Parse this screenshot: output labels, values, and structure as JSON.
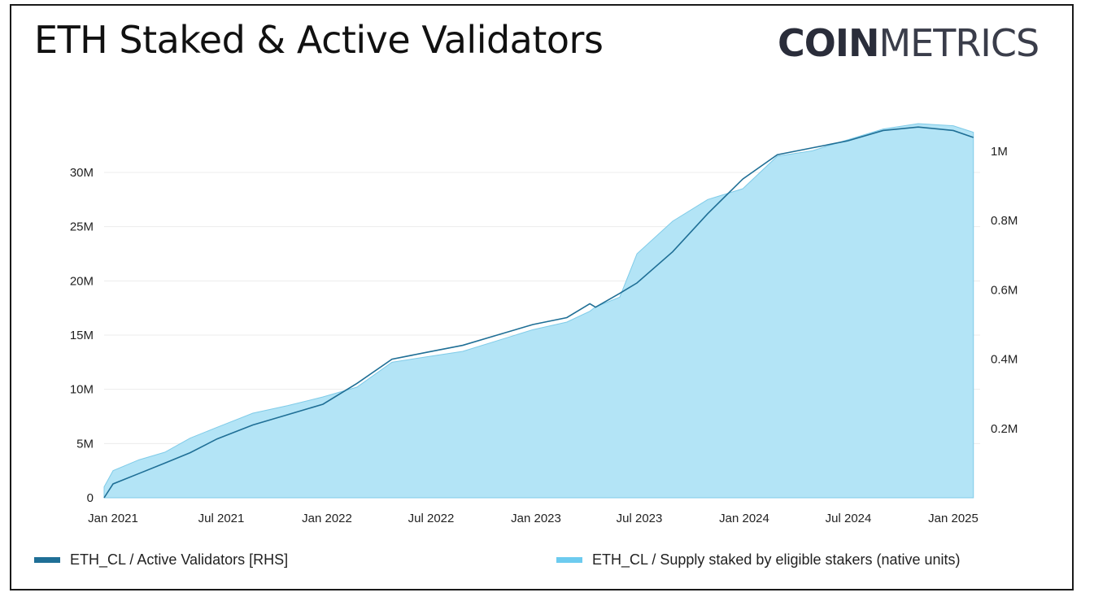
{
  "header": {
    "title": "ETH Staked & Active Validators",
    "logo_bold": "COIN",
    "logo_light": "METRICS"
  },
  "colors": {
    "area_fill": "#b3e4f6",
    "area_edge": "#7fcbe8",
    "line": "#1f6f96",
    "legend_line": "#1f6f96",
    "legend_area": "#6dcbef",
    "grid": "#ececec"
  },
  "chart_data": {
    "type": "area",
    "title": "ETH Staked & Active Validators",
    "x_ticks": [
      "Jan 2021",
      "Jul 2021",
      "Jan 2022",
      "Jul 2022",
      "Jan 2023",
      "Jul 2023",
      "Jan 2024",
      "Jul 2024",
      "Jan 2025"
    ],
    "y_left_ticks": [
      "0",
      "5M",
      "10M",
      "15M",
      "20M",
      "25M",
      "30M"
    ],
    "y_right_ticks": [
      "0.2M",
      "0.4M",
      "0.6M",
      "0.8M",
      "1M"
    ],
    "ylim_left": [
      0,
      34000000
    ],
    "ylim_right": [
      0,
      1100000
    ],
    "grid": true,
    "legend_position": "bottom",
    "x_dates": [
      "2020-12-01",
      "2021-01-01",
      "2021-02-15",
      "2021-04-01",
      "2021-05-15",
      "2021-07-01",
      "2021-09-01",
      "2021-11-01",
      "2022-01-01",
      "2022-03-01",
      "2022-05-01",
      "2022-07-01",
      "2022-09-01",
      "2022-11-01",
      "2023-01-01",
      "2023-03-01",
      "2023-04-10",
      "2023-04-20",
      "2023-06-01",
      "2023-07-01",
      "2023-09-01",
      "2023-11-01",
      "2024-01-01",
      "2024-03-01",
      "2024-05-01",
      "2024-07-01",
      "2024-09-01",
      "2024-11-01",
      "2025-01-01",
      "2025-02-05"
    ],
    "series": [
      {
        "name": "ETH_CL / Supply staked by eligible stakers (native units)",
        "axis": "left",
        "values": [
          1000000,
          2500000,
          3500000,
          4200000,
          5500000,
          6500000,
          7800000,
          8500000,
          9300000,
          10200000,
          12500000,
          13000000,
          13500000,
          14500000,
          15500000,
          16200000,
          17200000,
          17600000,
          18500000,
          22500000,
          25500000,
          27500000,
          28500000,
          31500000,
          32000000,
          33000000,
          34000000,
          34500000,
          34300000,
          33700000
        ]
      },
      {
        "name": "ETH_CL / Active Validators [RHS]",
        "axis": "right",
        "values": [
          0,
          40000,
          70000,
          100000,
          130000,
          170000,
          210000,
          240000,
          270000,
          330000,
          400000,
          420000,
          440000,
          470000,
          500000,
          520000,
          560000,
          550000,
          590000,
          620000,
          710000,
          820000,
          920000,
          990000,
          1010000,
          1030000,
          1060000,
          1070000,
          1060000,
          1040000
        ]
      }
    ]
  },
  "legend": {
    "line_label": "ETH_CL / Active Validators [RHS]",
    "area_label": "ETH_CL / Supply staked by eligible stakers (native units)"
  }
}
